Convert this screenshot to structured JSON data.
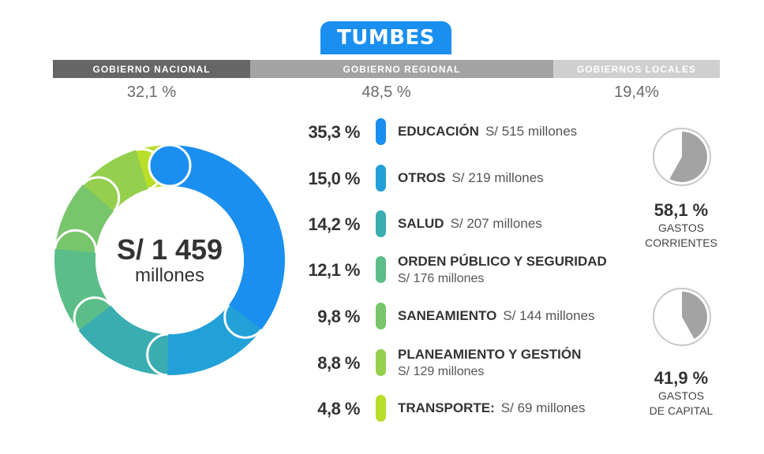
{
  "region": "TUMBES",
  "government_levels": [
    {
      "name": "GOBIERNO NACIONAL",
      "pct": "32,1 %",
      "color": "#666666"
    },
    {
      "name": "GOBIERNO REGIONAL",
      "pct": "48,5 %",
      "color": "#a3a3a3"
    },
    {
      "name": "GOBIERNOS LOCALES",
      "pct": "19,4%",
      "color": "#cfcfcf"
    }
  ],
  "total": {
    "amount": "S/ 1 459",
    "unit": "millones"
  },
  "categories": [
    {
      "pct": "35,3 %",
      "name": "EDUCACIÓN",
      "amount": "S/ 515 millones",
      "color": "#1a8ff0",
      "wrap": false
    },
    {
      "pct": "15,0 %",
      "name": "OTROS",
      "amount": "S/ 219 millones",
      "color": "#22a0d8",
      "wrap": false
    },
    {
      "pct": "14,2 %",
      "name": "SALUD",
      "amount": "S/ 207 millones",
      "color": "#3aadb0",
      "wrap": false
    },
    {
      "pct": "12,1 %",
      "name": "ORDEN PÚBLICO Y SEGURIDAD",
      "amount": "S/ 176 millones",
      "color": "#5bbd88",
      "wrap": true
    },
    {
      "pct": "9,8 %",
      "name": "SANEAMIENTO",
      "amount": "S/ 144 millones",
      "color": "#78c56c",
      "wrap": false
    },
    {
      "pct": "8,8 %",
      "name": "PLANEAMIENTO Y GESTIÓN",
      "amount": "S/ 129 millones",
      "color": "#94cf4e",
      "wrap": true
    },
    {
      "pct": "4,8 %",
      "name": "TRANSPORTE:",
      "amount": "S/ 69 millones",
      "color": "#b8de2a",
      "wrap": false
    }
  ],
  "spending_types": [
    {
      "pct": "58,1 %",
      "label_line1": "GASTOS",
      "label_line2": "CORRIENTES",
      "fraction": 0.581
    },
    {
      "pct": "41,9 %",
      "label_line1": "GASTOS",
      "label_line2": "DE CAPITAL",
      "fraction": 0.419
    }
  ],
  "chart_data": {
    "type": "pie",
    "title": "TUMBES",
    "total_label": "S/ 1 459 millones",
    "categories": [
      "EDUCACIÓN",
      "OTROS",
      "SALUD",
      "ORDEN PÚBLICO Y SEGURIDAD",
      "SANEAMIENTO",
      "PLANEAMIENTO Y GESTIÓN",
      "TRANSPORTE"
    ],
    "values": [
      515,
      219,
      207,
      176,
      144,
      129,
      69
    ],
    "percentages": [
      35.3,
      15.0,
      14.2,
      12.1,
      9.8,
      8.8,
      4.8
    ]
  }
}
